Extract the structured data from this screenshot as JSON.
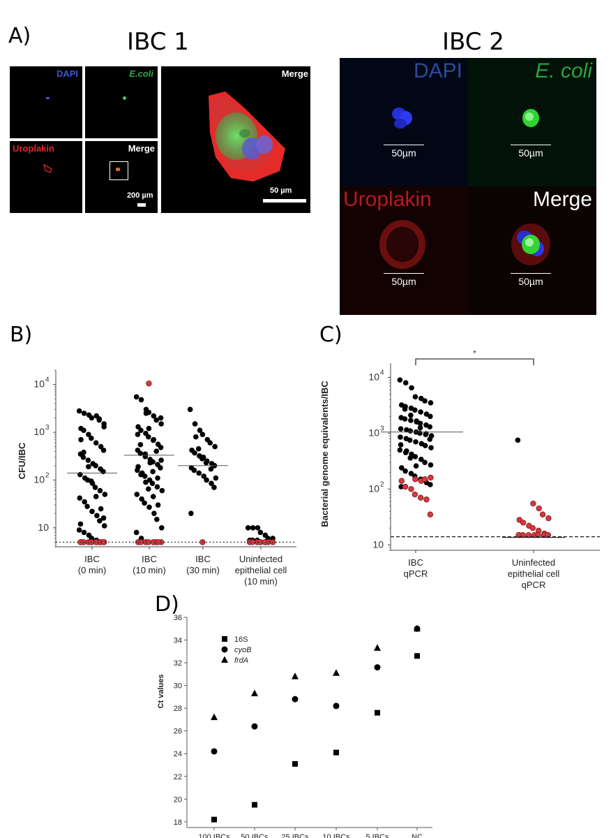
{
  "panelA": {
    "letter": "A)",
    "ibc1": {
      "title": "IBC 1",
      "labels": {
        "dapi": "DAPI",
        "ecoli": "E.coli",
        "uroplakin": "Uroplakin",
        "merge_small": "Merge",
        "merge_large": "Merge"
      },
      "scale_small": "200 µm",
      "scale_large": "50 µm"
    },
    "ibc2": {
      "title": "IBC 2",
      "labels": {
        "dapi": "DAPI",
        "ecoli": "E. coli",
        "uroplakin": "Uroplakin",
        "merge": "Merge"
      },
      "scale": "50µm"
    }
  },
  "panelB": {
    "letter": "B)"
  },
  "panelC": {
    "letter": "C)"
  },
  "panelD": {
    "letter": "D)"
  },
  "colors": {
    "black_dot": "#000000",
    "red_dot": "#d9363e",
    "red_stroke": "#7a1b1e"
  },
  "chart_data": [
    {
      "id": "B",
      "type": "scatter",
      "title": "",
      "ylabel": "CFU/IBC",
      "yscale": "log",
      "ylim": [
        4,
        20000
      ],
      "ticks": [
        {
          "v": 10000,
          "base": "10",
          "exp": "4"
        },
        {
          "v": 1000,
          "base": "10",
          "exp": "3"
        },
        {
          "v": 100,
          "base": "10",
          "exp": "2"
        },
        {
          "v": 10,
          "base": "10",
          "exp": ""
        }
      ],
      "categories": [
        {
          "line1": "IBC",
          "line2": "(0 min)",
          "line3": ""
        },
        {
          "line1": "IBC",
          "line2": "(10 min)",
          "line3": ""
        },
        {
          "line1": "IBC",
          "line2": "(30 min)",
          "line3": ""
        },
        {
          "line1": "Uninfected",
          "line2": "epithelial cell",
          "line3": "(10 min)"
        }
      ],
      "detection_limit": 5,
      "medians": [
        140,
        330,
        200,
        null
      ],
      "series": [
        {
          "name": "IBC (0 min)",
          "black": [
            2800,
            2500,
            2300,
            2000,
            2200,
            1800,
            1500,
            1200,
            1100,
            900,
            750,
            600,
            500,
            420,
            350,
            300,
            260,
            220,
            200,
            170,
            150,
            130,
            110,
            100,
            85,
            70,
            60,
            50,
            42,
            35,
            28,
            22,
            18,
            14,
            11,
            9,
            8,
            7,
            6,
            5.5,
            1900,
            1300,
            700,
            380,
            190,
            95,
            45,
            25,
            16,
            12
          ],
          "red": [
            5,
            5,
            5,
            5,
            5,
            5,
            5,
            5,
            5,
            5,
            5,
            5
          ]
        },
        {
          "name": "IBC (10 min)",
          "black": [
            5500,
            4800,
            3000,
            2600,
            2200,
            1800,
            1500,
            1300,
            1100,
            950,
            800,
            680,
            560,
            480,
            420,
            360,
            310,
            270,
            240,
            210,
            180,
            160,
            140,
            120,
            100,
            85,
            72,
            60,
            50,
            40,
            33,
            27,
            20,
            15,
            10,
            8,
            6,
            2500,
            1200,
            700,
            400,
            260,
            190,
            130,
            90,
            65,
            45,
            30,
            2000,
            900,
            550,
            350,
            230,
            150,
            110
          ],
          "red": [
            10500,
            5,
            5,
            5,
            5,
            5,
            5,
            5,
            5,
            5
          ]
        },
        {
          "name": "IBC (30 min)",
          "black": [
            3000,
            1500,
            1100,
            900,
            700,
            600,
            500,
            420,
            370,
            320,
            280,
            250,
            220,
            200,
            180,
            160,
            140,
            120,
            100,
            85,
            70,
            20,
            800,
            450,
            300,
            230,
            170,
            110
          ],
          "red": [
            5
          ]
        },
        {
          "name": "Uninfected epithelial cell (10 min)",
          "black": [
            10,
            10,
            10,
            8,
            7,
            6,
            6,
            5.5,
            5.5,
            5.5
          ],
          "red": [
            5,
            5,
            5,
            5,
            5,
            5,
            5,
            5,
            5
          ]
        }
      ]
    },
    {
      "id": "C",
      "type": "scatter",
      "title": "",
      "ylabel": "Bacterial genome equivalents/IBC",
      "yscale": "log",
      "ylim": [
        8,
        18000
      ],
      "ticks": [
        {
          "v": 10000,
          "base": "10",
          "exp": "4"
        },
        {
          "v": 1000,
          "base": "10",
          "exp": "3"
        },
        {
          "v": 100,
          "base": "10",
          "exp": "2"
        },
        {
          "v": 10,
          "base": "10",
          "exp": ""
        }
      ],
      "categories": [
        {
          "line1": "IBC",
          "line2": "qPCR",
          "line3": ""
        },
        {
          "line1": "Uninfected",
          "line2": "epithelial cell",
          "line3": "qPCR"
        }
      ],
      "detection_limit": 14,
      "medians": [
        1050,
        14
      ],
      "significance": "*",
      "series": [
        {
          "name": "IBC qPCR",
          "black": [
            9000,
            8000,
            6500,
            4500,
            4200,
            3800,
            3500,
            3200,
            3000,
            2800,
            2600,
            2400,
            2200,
            2000,
            1900,
            1800,
            1700,
            1600,
            1500,
            1400,
            1300,
            1200,
            1150,
            1100,
            1050,
            1000,
            950,
            900,
            850,
            800,
            750,
            700,
            650,
            600,
            550,
            500,
            450,
            420,
            380,
            340,
            300,
            270,
            240,
            210,
            190,
            170,
            150,
            130,
            120,
            110,
            2700,
            2100,
            1650,
            1250,
            980,
            780,
            620,
            480,
            360,
            260
          ],
          "red": [
            150,
            140,
            150,
            160,
            140,
            110,
            100,
            80,
            70,
            65,
            35
          ]
        },
        {
          "name": "Uninfected epithelial cell qPCR",
          "black": [
            750
          ],
          "red": [
            55,
            45,
            35,
            30,
            28,
            25,
            22,
            20,
            18,
            16,
            15,
            15,
            15,
            15,
            15,
            15,
            15,
            15,
            15
          ]
        }
      ]
    },
    {
      "id": "D",
      "type": "scatter",
      "title": "",
      "ylabel": "Ct values",
      "ylim": [
        17.5,
        36
      ],
      "yticks": [
        18,
        20,
        22,
        24,
        26,
        28,
        30,
        32,
        34,
        36
      ],
      "categories": [
        "100 IBCs",
        "50 IBCs",
        "25 IBCs",
        "10 IBCs",
        "5 IBCs",
        "NC"
      ],
      "legend": [
        {
          "name": "16S",
          "marker": "square",
          "italic": false
        },
        {
          "name": "cyoB",
          "marker": "circle",
          "italic": true
        },
        {
          "name": "frdA",
          "marker": "triangle",
          "italic": true
        }
      ],
      "series": [
        {
          "name": "16S",
          "marker": "square",
          "values": [
            18.2,
            19.5,
            23.1,
            24.1,
            27.6,
            32.6
          ]
        },
        {
          "name": "cyoB",
          "marker": "circle",
          "values": [
            24.2,
            26.4,
            28.8,
            28.2,
            31.6,
            35.0
          ]
        },
        {
          "name": "frdA",
          "marker": "triangle",
          "values": [
            27.2,
            29.3,
            30.8,
            31.1,
            33.3,
            35.0
          ]
        }
      ]
    }
  ]
}
